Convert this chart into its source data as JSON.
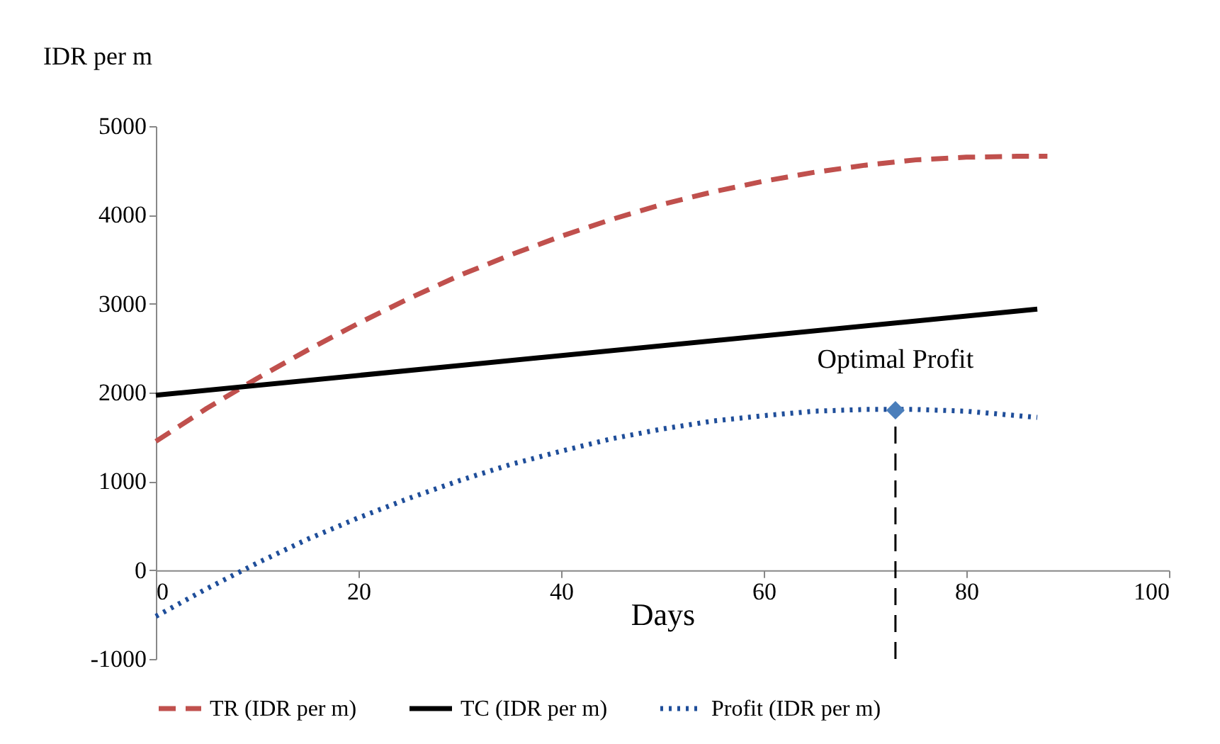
{
  "chart_data": {
    "type": "line",
    "ylabel": "IDR per m",
    "xlabel": "Days",
    "xlim": [
      0,
      100
    ],
    "xticks": [
      0,
      20,
      40,
      60,
      80,
      100
    ],
    "ylim": [
      -1000,
      5000
    ],
    "yticks": [
      -1000,
      0,
      1000,
      2000,
      3000,
      4000,
      5000
    ],
    "legend": "bottom",
    "series": [
      {
        "name": "TR (IDR per m)",
        "color": "#c0504d",
        "line_style": "dashed",
        "x": [
          0,
          5,
          10,
          15,
          20,
          25,
          30,
          35,
          40,
          45,
          50,
          55,
          60,
          65,
          70,
          75,
          80,
          85,
          88
        ],
        "values": [
          1450,
          1820,
          2160,
          2480,
          2780,
          3060,
          3320,
          3550,
          3760,
          3950,
          4120,
          4260,
          4380,
          4480,
          4560,
          4620,
          4650,
          4660,
          4660
        ]
      },
      {
        "name": "TC (IDR per m)",
        "color": "#000000",
        "line_style": "solid",
        "x": [
          0,
          87
        ],
        "values": [
          1970,
          2940
        ]
      },
      {
        "name": "Profit (IDR per m)",
        "color": "#1f4e9a",
        "line_style": "dotted",
        "x": [
          0,
          5,
          10,
          15,
          20,
          25,
          30,
          35,
          40,
          45,
          50,
          55,
          60,
          65,
          70,
          75,
          80,
          85,
          87
        ],
        "values": [
          -520,
          -210,
          80,
          350,
          590,
          810,
          1010,
          1190,
          1340,
          1480,
          1590,
          1680,
          1740,
          1790,
          1810,
          1810,
          1790,
          1740,
          1720
        ]
      },
      {
        "type": "scatter",
        "marker": "diamond",
        "color": "#4a7ebb",
        "x": [
          73
        ],
        "values": [
          1800
        ]
      }
    ],
    "ref_lines": [
      {
        "axis": "x",
        "value": 73,
        "color": "#000000",
        "line_style": "dashed"
      }
    ],
    "annotations": [
      {
        "text": "Optimal Profit",
        "x": 73,
        "y": 1800
      }
    ]
  }
}
